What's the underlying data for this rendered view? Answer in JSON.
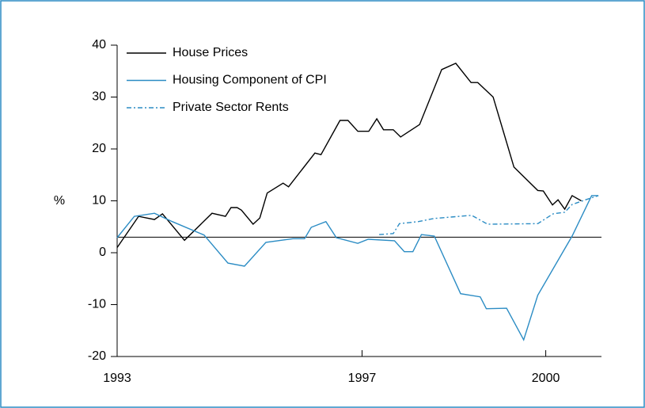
{
  "chart_data": {
    "type": "line",
    "ylabel": "%",
    "xlim": [
      1993,
      2000.91
    ],
    "xticks": [
      1993,
      1997,
      2000
    ],
    "ylim": [
      -20,
      40
    ],
    "yticks": [
      -20,
      -10,
      0,
      10,
      20,
      30,
      40
    ],
    "reference_line": 3,
    "legend": "top-left",
    "series": [
      {
        "name": "House Prices",
        "color": "#000000",
        "style": "solid",
        "x": [
          1993.0,
          1993.35,
          1993.61,
          1993.74,
          1994.1,
          1994.55,
          1994.77,
          1994.86,
          1994.96,
          1995.03,
          1995.22,
          1995.33,
          1995.45,
          1995.71,
          1995.8,
          1996.23,
          1996.33,
          1996.64,
          1996.77,
          1996.93,
          1997.11,
          1997.24,
          1997.35,
          1997.51,
          1997.63,
          1997.94,
          1998.3,
          1998.53,
          1998.78,
          1998.89,
          1999.14,
          1999.48,
          1999.87,
          1999.96,
          2000.11,
          2000.2,
          2000.31,
          2000.43,
          2000.58
        ],
        "values": [
          1,
          7,
          6.4,
          7.5,
          2.4,
          7.6,
          7,
          8.7,
          8.7,
          8.2,
          5.5,
          6.7,
          11.5,
          13.4,
          12.7,
          19.2,
          18.9,
          25.5,
          25.5,
          23.4,
          23.4,
          25.8,
          23.7,
          23.7,
          22.3,
          24.7,
          35.3,
          36.5,
          32.8,
          32.8,
          30,
          16.5,
          12,
          11.9,
          9.2,
          10.2,
          8.4,
          11,
          10
        ]
      },
      {
        "name": "Housing Component of CPI",
        "color": "#2b8cc4",
        "style": "solid",
        "x": [
          1993.0,
          1993.28,
          1993.61,
          1993.9,
          1994.42,
          1994.81,
          1995.08,
          1995.43,
          1995.87,
          1996.06,
          1996.17,
          1996.41,
          1996.58,
          1996.93,
          1997.1,
          1997.53,
          1997.69,
          1997.83,
          1997.97,
          1998.18,
          1998.61,
          1998.93,
          1999.03,
          1999.36,
          1999.64,
          1999.87,
          2000.43,
          2000.75,
          2000.86
        ],
        "values": [
          2.9,
          7,
          7.6,
          6,
          3.4,
          -2,
          -2.6,
          2,
          2.7,
          2.7,
          4.9,
          6,
          2.9,
          1.8,
          2.6,
          2.3,
          0.2,
          0.2,
          3.5,
          3.2,
          -7.9,
          -8.5,
          -10.8,
          -10.7,
          -16.8,
          -8.2,
          3.2,
          11,
          11
        ]
      },
      {
        "name": "Private Sector Rents",
        "color": "#2b8cc4",
        "style": "dashdot",
        "x": [
          1997.28,
          1997.51,
          1997.61,
          1997.92,
          1998.17,
          1998.79,
          1999.05,
          1999.87,
          2000.12,
          2000.31,
          2000.43,
          2000.65,
          2000.86
        ],
        "values": [
          3.5,
          3.7,
          5.6,
          6,
          6.6,
          7.2,
          5.5,
          5.6,
          7.5,
          7.8,
          9.3,
          10.2,
          11
        ]
      }
    ]
  }
}
